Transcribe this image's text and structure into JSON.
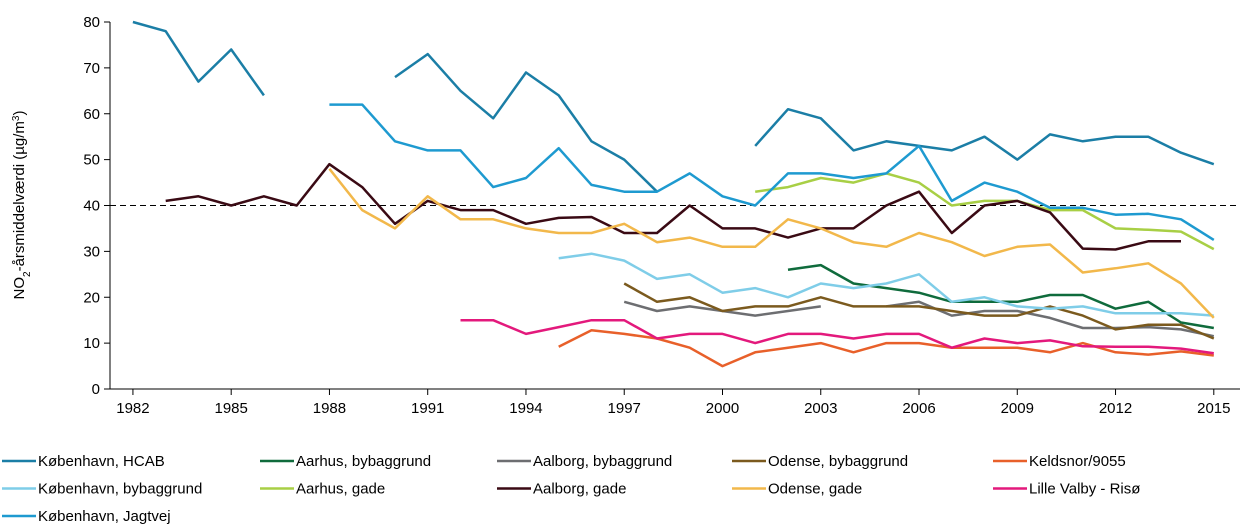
{
  "chart_data": {
    "type": "line",
    "ylabel_parts": [
      "NO",
      "2",
      "-årsmiddelværdi (µg/m",
      "3",
      ")"
    ],
    "x": [
      1982,
      1983,
      1984,
      1985,
      1986,
      1987,
      1988,
      1989,
      1990,
      1991,
      1992,
      1993,
      1994,
      1995,
      1996,
      1997,
      1998,
      1999,
      2000,
      2001,
      2002,
      2003,
      2004,
      2005,
      2006,
      2007,
      2008,
      2009,
      2010,
      2011,
      2012,
      2013,
      2014,
      2015
    ],
    "xlim": [
      1981.3,
      2015.8
    ],
    "xticks": [
      1982,
      1985,
      1988,
      1991,
      1994,
      1997,
      2000,
      2003,
      2006,
      2009,
      2012,
      2015
    ],
    "ylim": [
      0,
      80
    ],
    "yticks": [
      0,
      10,
      20,
      30,
      40,
      50,
      60,
      70,
      80
    ],
    "hline": 40,
    "legend_columns": 5,
    "series": [
      {
        "name": "København, HCAB",
        "color": "#1b7ea6",
        "values": [
          80,
          78,
          67,
          74,
          64,
          null,
          null,
          null,
          68,
          73,
          65,
          59,
          69,
          64,
          54,
          50,
          43,
          null,
          null,
          53,
          61,
          59,
          52,
          54,
          53,
          52,
          55,
          50,
          55.5,
          54,
          55,
          55,
          51.5,
          49
        ]
      },
      {
        "name": "Aarhus, bybaggrund",
        "color": "#0f6b3c",
        "values": [
          null,
          null,
          null,
          null,
          null,
          null,
          null,
          null,
          null,
          null,
          null,
          null,
          null,
          null,
          null,
          null,
          null,
          null,
          null,
          null,
          26,
          27,
          23,
          22,
          21,
          19,
          19,
          19,
          20.5,
          20.5,
          17.5,
          19,
          14.5,
          13.3
        ]
      },
      {
        "name": "Aalborg, bybaggrund",
        "color": "#6d6e71",
        "values": [
          null,
          null,
          null,
          null,
          null,
          null,
          null,
          null,
          null,
          null,
          null,
          null,
          null,
          null,
          null,
          19,
          17,
          18,
          17,
          16,
          17,
          18,
          null,
          18,
          19,
          16,
          17,
          17,
          15.5,
          13.3,
          13.3,
          13.5,
          13,
          11.5
        ]
      },
      {
        "name": "Odense, bybaggrund",
        "color": "#7b5a1e",
        "values": [
          null,
          null,
          null,
          null,
          null,
          null,
          null,
          null,
          null,
          null,
          null,
          null,
          null,
          null,
          null,
          23,
          19,
          20,
          17,
          18,
          18,
          20,
          18,
          18,
          18,
          17,
          16,
          16,
          18,
          16,
          13,
          14,
          14,
          11
        ]
      },
      {
        "name": "Keldsnor/9055",
        "color": "#e8602a",
        "values": [
          null,
          null,
          null,
          null,
          null,
          null,
          null,
          null,
          null,
          null,
          null,
          null,
          null,
          9.2,
          12.8,
          12,
          11,
          9,
          5,
          8,
          9,
          10,
          8,
          10,
          10,
          9,
          9,
          9,
          8,
          10,
          8,
          7.5,
          8.2,
          7.3
        ]
      },
      {
        "name": "København, bybaggrund",
        "color": "#7fcde8",
        "values": [
          null,
          null,
          null,
          null,
          null,
          null,
          null,
          null,
          null,
          null,
          null,
          null,
          null,
          28.5,
          29.5,
          28,
          24,
          25,
          21,
          22,
          20,
          23,
          22,
          23,
          25,
          19,
          20,
          18,
          17.5,
          18,
          16.5,
          16.5,
          16.5,
          16
        ]
      },
      {
        "name": "Aarhus, gade",
        "color": "#a8cf45",
        "values": [
          null,
          null,
          null,
          null,
          null,
          null,
          null,
          null,
          null,
          null,
          null,
          null,
          null,
          null,
          null,
          null,
          null,
          null,
          null,
          43,
          44,
          46,
          45,
          47,
          45,
          40,
          41,
          41,
          39,
          39,
          35,
          34.7,
          34.3,
          30.5
        ]
      },
      {
        "name": "Aalborg, gade",
        "color": "#3a0a14",
        "values": [
          null,
          41,
          42,
          40,
          42,
          40,
          49,
          44,
          36,
          41,
          39,
          39,
          36,
          37.3,
          37.5,
          34,
          34,
          40,
          35,
          35,
          33,
          35,
          35,
          40,
          43,
          34,
          40,
          41,
          38.5,
          30.6,
          30.4,
          32.2,
          32.2,
          null
        ]
      },
      {
        "name": "Odense, gade",
        "color": "#f2b84b",
        "values": [
          null,
          null,
          null,
          null,
          null,
          null,
          48,
          39,
          35,
          42,
          37,
          37,
          35,
          34,
          34,
          36,
          32,
          33,
          31,
          31,
          37,
          35,
          32,
          31,
          34,
          32,
          29,
          31,
          31.5,
          25.4,
          26.3,
          27.4,
          23,
          15.5
        ]
      },
      {
        "name": "Lille Valby - Risø",
        "color": "#e3197c",
        "values": [
          null,
          null,
          null,
          null,
          null,
          null,
          null,
          null,
          null,
          null,
          15,
          15,
          12,
          13.5,
          15,
          15,
          11,
          12,
          12,
          10,
          12,
          12,
          11,
          12,
          12,
          9,
          11,
          10,
          10.6,
          9.3,
          9.2,
          9.2,
          8.8,
          7.8
        ]
      },
      {
        "name": "København, Jagtvej",
        "color": "#1e9ad0",
        "values": [
          null,
          null,
          null,
          null,
          null,
          null,
          62,
          62,
          54,
          52,
          52,
          44,
          46,
          52.5,
          44.5,
          43,
          43,
          47,
          42,
          40,
          47,
          47,
          46,
          47,
          53,
          41,
          45,
          43,
          39.5,
          39.5,
          38,
          38.2,
          37,
          32.5
        ]
      }
    ]
  }
}
